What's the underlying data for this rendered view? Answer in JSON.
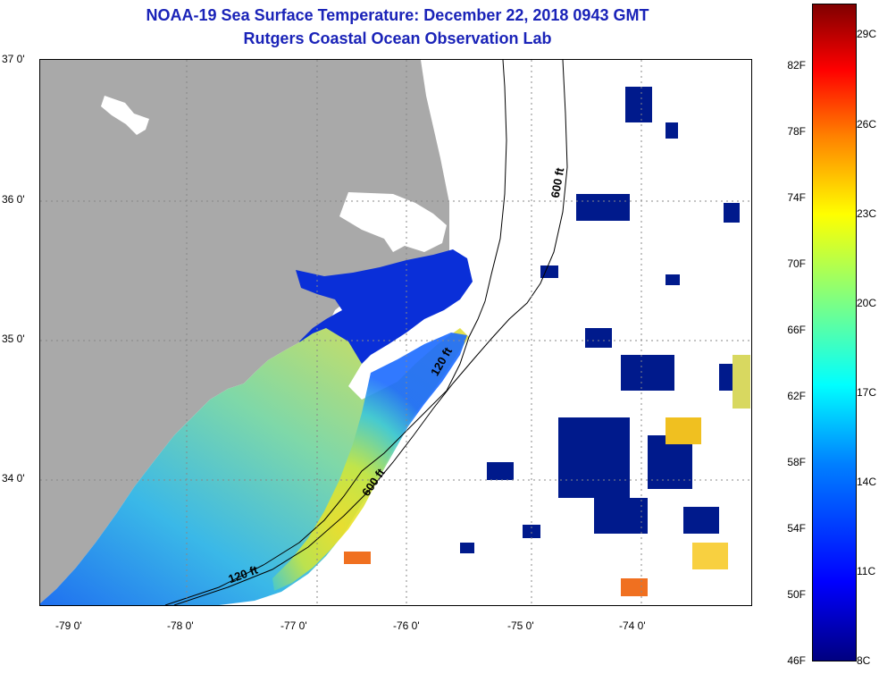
{
  "header": {
    "title": "NOAA-19 Sea Surface Temperature:  December 22, 2018 0943 GMT",
    "subtitle": "Rutgers Coastal Ocean Observation Lab"
  },
  "map": {
    "lat_labels": [
      "37 0'",
      "36 0'",
      "35 0'",
      "34 0'"
    ],
    "lon_labels": [
      "-79 0'",
      "-78 0'",
      "-77 0'",
      "-76 0'",
      "-75 0'",
      "-74 0'"
    ],
    "contour_labels": [
      "600 ft",
      "120 ft",
      "600 ft",
      "120 ft"
    ],
    "colors": {
      "land": "#a9a9a9",
      "clouds": "#ffffff",
      "coastline": "#000000"
    }
  },
  "colorbar": {
    "fahrenheit_labels": [
      "82F",
      "78F",
      "74F",
      "70F",
      "66F",
      "62F",
      "58F",
      "54F",
      "50F",
      "46F"
    ],
    "celsius_labels": [
      "29C",
      "26C",
      "23C",
      "20C",
      "17C",
      "14C",
      "11C",
      "8C"
    ],
    "range_celsius": [
      8,
      30
    ],
    "colors": [
      "#000080",
      "#0000ff",
      "#0080ff",
      "#00ffff",
      "#80ff80",
      "#ffff00",
      "#ff8000",
      "#ff0000",
      "#800000"
    ]
  }
}
